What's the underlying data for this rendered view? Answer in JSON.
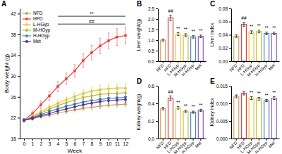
{
  "chart_data": [
    {
      "type": "line",
      "title": "A",
      "xlabel": "Week",
      "ylabel": "Body weight (g)",
      "x": [
        0,
        1,
        2,
        3,
        4,
        5,
        6,
        7,
        8,
        9,
        10,
        11,
        12
      ],
      "xlim": [
        -0.5,
        12.5
      ],
      "xticks": [
        0,
        1,
        2,
        3,
        4,
        5,
        6,
        7,
        8,
        9,
        10,
        11,
        12
      ],
      "ylim": [
        18,
        43
      ],
      "yticks": [
        18,
        22,
        26,
        30,
        34,
        38,
        42
      ],
      "legend": "upper left",
      "series": [
        {
          "name": "NFD",
          "color": "#c8a060",
          "marker": "circle",
          "values": [
            21.5,
            21.8,
            22.2,
            22.5,
            22.9,
            23.2,
            23.5,
            23.8,
            24.0,
            24.2,
            24.4,
            24.5,
            24.6
          ],
          "errors": [
            0.3,
            0.3,
            0.3,
            0.4,
            0.4,
            0.4,
            0.4,
            0.4,
            0.5,
            0.5,
            0.5,
            0.5,
            0.5
          ]
        },
        {
          "name": "HFD",
          "color": "#e84040",
          "marker": "square",
          "values": [
            21.5,
            22.8,
            24.5,
            26.2,
            28.0,
            29.5,
            31.0,
            33.0,
            34.5,
            35.8,
            36.8,
            37.5,
            37.8
          ],
          "errors": [
            0.3,
            0.5,
            0.7,
            0.9,
            1.0,
            1.1,
            1.2,
            1.3,
            1.4,
            1.5,
            1.5,
            1.6,
            1.6
          ]
        },
        {
          "name": "L-HGyp",
          "color": "#e0c840",
          "marker": "triangle-up",
          "values": [
            21.5,
            22.3,
            23.2,
            24.0,
            24.8,
            25.5,
            26.1,
            26.7,
            27.1,
            27.4,
            27.6,
            27.7,
            27.7
          ],
          "errors": [
            0.3,
            0.4,
            0.5,
            0.5,
            0.6,
            0.6,
            0.7,
            0.7,
            0.8,
            0.8,
            0.8,
            0.8,
            0.9
          ]
        },
        {
          "name": "M-HGyp",
          "color": "#c0b830",
          "marker": "diamond",
          "values": [
            21.5,
            22.1,
            22.9,
            23.6,
            24.3,
            24.9,
            25.4,
            25.9,
            26.2,
            26.5,
            26.6,
            26.7,
            26.8
          ],
          "errors": [
            0.3,
            0.4,
            0.4,
            0.5,
            0.5,
            0.5,
            0.6,
            0.6,
            0.6,
            0.7,
            0.7,
            0.7,
            0.7
          ]
        },
        {
          "name": "H-HGyp",
          "color": "#4080c0",
          "marker": "triangle-down",
          "values": [
            21.5,
            22.0,
            22.6,
            23.2,
            23.7,
            24.2,
            24.6,
            25.0,
            25.3,
            25.5,
            25.7,
            25.8,
            25.9
          ],
          "errors": [
            0.3,
            0.3,
            0.4,
            0.4,
            0.5,
            0.5,
            0.5,
            0.6,
            0.6,
            0.6,
            0.6,
            0.7,
            0.7
          ]
        },
        {
          "name": "Met",
          "color": "#503090",
          "marker": "circle",
          "values": [
            21.5,
            21.9,
            22.4,
            22.8,
            23.3,
            23.7,
            24.1,
            24.5,
            24.8,
            25.1,
            25.3,
            25.4,
            25.5
          ],
          "errors": [
            0.3,
            0.3,
            0.4,
            0.4,
            0.4,
            0.5,
            0.5,
            0.5,
            0.5,
            0.6,
            0.6,
            0.6,
            0.6
          ]
        }
      ],
      "annotations": [
        {
          "text": "**",
          "x_start": 4,
          "x_end": 12,
          "y": 41.5
        },
        {
          "text": "##",
          "x_start": 4,
          "x_end": 12,
          "y": 40.0
        }
      ]
    },
    {
      "type": "bar",
      "title": "B",
      "ylabel": "Liver weight(g)",
      "categories": [
        "NFD",
        "HFD",
        "L-HGyp",
        "M-HGyp",
        "H-HGyp",
        "Met"
      ],
      "values": [
        1.0,
        2.05,
        1.28,
        1.23,
        1.15,
        1.18
      ],
      "errors": [
        0.05,
        0.12,
        0.07,
        0.07,
        0.06,
        0.06
      ],
      "colors": [
        "#d4a060",
        "#e84040",
        "#e0c840",
        "#c0b830",
        "#4080c0",
        "#9060c0"
      ],
      "ylim": [
        0.0,
        2.5
      ],
      "yticks": [
        {
          "value": 0.0,
          "label": "0.0"
        },
        0.5,
        {
          "value": 1.0,
          "label": "1.0"
        },
        1.5,
        {
          "value": 2.0,
          "label": "2.0"
        },
        2.5
      ],
      "annotations": [
        {
          "text": "##",
          "category": "HFD"
        },
        {
          "text": "**",
          "category": "L-HGyp"
        },
        {
          "text": "**",
          "category": "M-HGyp"
        },
        {
          "text": "**",
          "category": "H-HGyp"
        },
        {
          "text": "**",
          "category": "Met"
        }
      ]
    },
    {
      "type": "bar",
      "title": "C",
      "ylabel": "Liver index",
      "categories": [
        "NFD",
        "HFD",
        "L-HGyp",
        "M-HGyp",
        "H-HGyp",
        "Met"
      ],
      "values": [
        0.038,
        0.056,
        0.044,
        0.045,
        0.042,
        0.042
      ],
      "errors": [
        0.002,
        0.003,
        0.002,
        0.002,
        0.002,
        0.002
      ],
      "colors": [
        "#d4a060",
        "#e84040",
        "#e0c840",
        "#c0b830",
        "#4080c0",
        "#9060c0"
      ],
      "ylim": [
        0.0,
        0.08
      ],
      "yticks": [
        {
          "value": 0.0,
          "label": "0.00"
        },
        0.02,
        0.04,
        0.06,
        0.08
      ],
      "annotations": [
        {
          "text": "##",
          "category": "HFD"
        },
        {
          "text": "**",
          "category": "L-HGyp"
        },
        {
          "text": "**",
          "category": "M-HGyp"
        },
        {
          "text": "**",
          "category": "H-HGyp"
        },
        {
          "text": "**",
          "category": "Met"
        }
      ]
    },
    {
      "type": "bar",
      "title": "D",
      "ylabel": "Kidney weight(g)",
      "categories": [
        "NFD",
        "HFD",
        "L-HGyp",
        "M-HGyp",
        "H-HGyp",
        "Met"
      ],
      "values": [
        0.34,
        0.46,
        0.35,
        0.31,
        0.3,
        0.32
      ],
      "errors": [
        0.015,
        0.025,
        0.015,
        0.012,
        0.012,
        0.013
      ],
      "colors": [
        "#d4a060",
        "#e84040",
        "#e0c840",
        "#c0b830",
        "#4080c0",
        "#9060c0"
      ],
      "ylim": [
        0.0,
        0.6
      ],
      "yticks": [
        {
          "value": 0.0,
          "label": "0.0"
        },
        0.2,
        0.4,
        0.6
      ],
      "annotations": [
        {
          "text": "##",
          "category": "HFD"
        },
        {
          "text": "**",
          "category": "L-HGyp"
        },
        {
          "text": "**",
          "category": "M-HGyp"
        },
        {
          "text": "**",
          "category": "H-HGyp"
        },
        {
          "text": "**",
          "category": "Met"
        }
      ]
    },
    {
      "type": "bar",
      "title": "E",
      "ylabel": "Kidney index",
      "categories": [
        "NFD",
        "HFD",
        "L-HGyp",
        "M-HGyp",
        "H-HGyp",
        "Met"
      ],
      "values": [
        0.012,
        0.0129,
        0.0115,
        0.0113,
        0.0108,
        0.0115
      ],
      "errors": [
        0.0004,
        0.0005,
        0.0004,
        0.0004,
        0.0003,
        0.0004
      ],
      "colors": [
        "#d4a060",
        "#e84040",
        "#e0c840",
        "#c0b830",
        "#4080c0",
        "#9060c0"
      ],
      "ylim": [
        0.0,
        0.015
      ],
      "yticks": [
        {
          "value": 0.0,
          "label": "0.000"
        },
        0.005,
        {
          "value": 0.01,
          "label": "0.010"
        },
        0.015
      ],
      "annotations": [
        {
          "text": "**",
          "category": "L-HGyp"
        },
        {
          "text": "**",
          "category": "M-HGyp"
        },
        {
          "text": "**",
          "category": "H-HGyp"
        },
        {
          "text": "**",
          "category": "Met"
        }
      ]
    }
  ]
}
